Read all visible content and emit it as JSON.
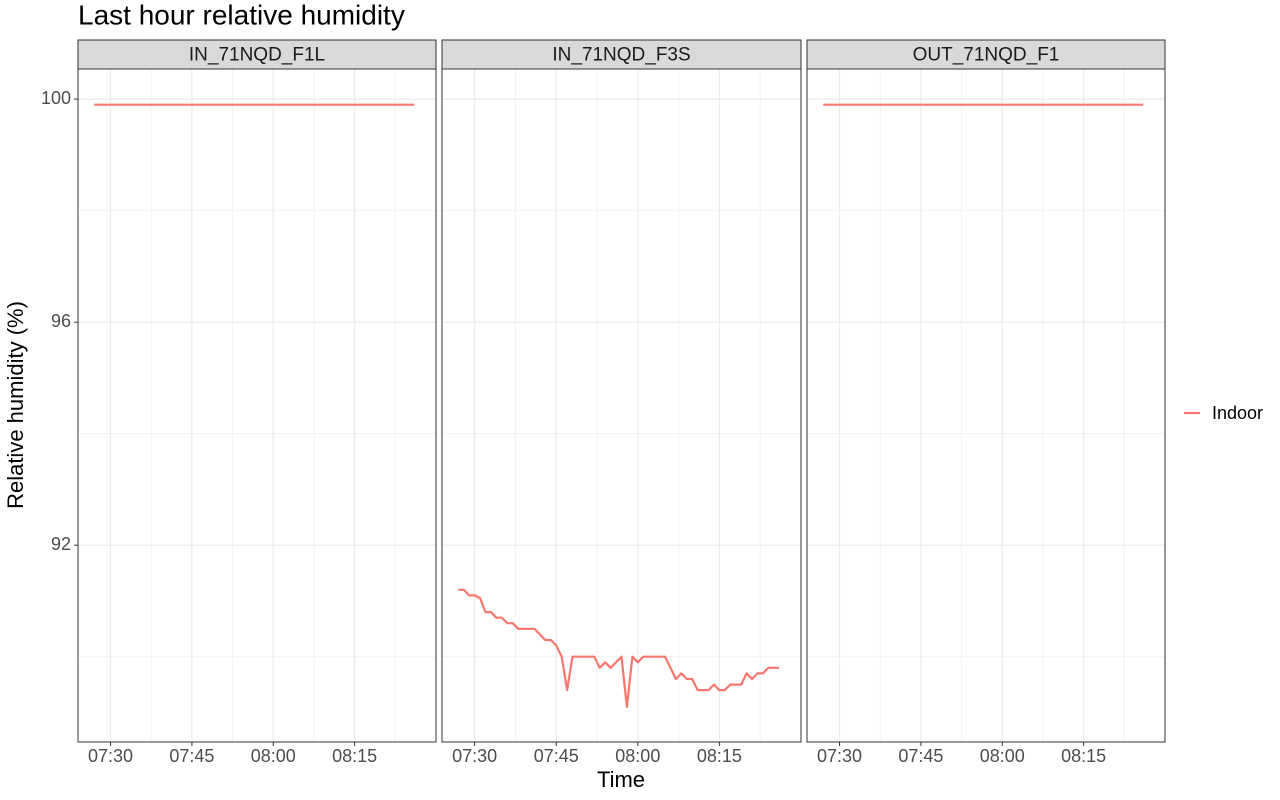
{
  "chart_data": {
    "type": "line",
    "title": "Last hour relative humidity",
    "xlabel": "Time",
    "ylabel": "Relative humidity (%)",
    "series_name": "Indoor",
    "color": "#f8766d",
    "legend_position": "right",
    "grid": true,
    "xlim": [
      "07:24",
      "08:30"
    ],
    "xticks": [
      "07:30",
      "07:45",
      "08:00",
      "08:15"
    ],
    "ylim": [
      88.47,
      100.54
    ],
    "yticks": [
      92,
      96,
      100
    ],
    "facets": [
      {
        "title": "IN_71NQD_F1L",
        "x": [
          "07:27",
          "08:26"
        ],
        "values": [
          99.9,
          99.9
        ]
      },
      {
        "title": "IN_71NQD_F3S",
        "x": [
          "07:27",
          "07:28",
          "07:29",
          "07:30",
          "07:31",
          "07:32",
          "07:33",
          "07:34",
          "07:35",
          "07:36",
          "07:37",
          "07:38",
          "07:39",
          "07:40",
          "07:41",
          "07:42",
          "07:43",
          "07:44",
          "07:45",
          "07:46",
          "07:47",
          "07:48",
          "07:49",
          "07:50",
          "07:51",
          "07:52",
          "07:53",
          "07:54",
          "07:55",
          "07:56",
          "07:57",
          "07:58",
          "07:59",
          "08:00",
          "08:01",
          "08:02",
          "08:03",
          "08:04",
          "08:05",
          "08:06",
          "08:07",
          "08:08",
          "08:09",
          "08:10",
          "08:11",
          "08:12",
          "08:13",
          "08:14",
          "08:15",
          "08:16",
          "08:17",
          "08:18",
          "08:19",
          "08:20",
          "08:21",
          "08:22",
          "08:23",
          "08:24",
          "08:25",
          "08:26"
        ],
        "values": [
          91.2,
          91.2,
          91.1,
          91.1,
          91.05,
          90.8,
          90.8,
          90.7,
          90.7,
          90.6,
          90.6,
          90.5,
          90.5,
          90.5,
          90.5,
          90.4,
          90.3,
          90.3,
          90.2,
          90.0,
          89.4,
          90.0,
          90.0,
          90.0,
          90.0,
          90.0,
          89.8,
          89.9,
          89.8,
          89.9,
          90.0,
          89.1,
          90.0,
          89.9,
          90.0,
          90.0,
          90.0,
          90.0,
          90.0,
          89.8,
          89.6,
          89.7,
          89.6,
          89.6,
          89.4,
          89.4,
          89.4,
          89.5,
          89.4,
          89.4,
          89.5,
          89.5,
          89.5,
          89.7,
          89.6,
          89.7,
          89.7,
          89.8,
          89.8,
          89.8
        ]
      },
      {
        "title": "OUT_71NQD_F1",
        "x": [
          "07:27",
          "08:26"
        ],
        "values": [
          99.9,
          99.9
        ]
      }
    ]
  }
}
